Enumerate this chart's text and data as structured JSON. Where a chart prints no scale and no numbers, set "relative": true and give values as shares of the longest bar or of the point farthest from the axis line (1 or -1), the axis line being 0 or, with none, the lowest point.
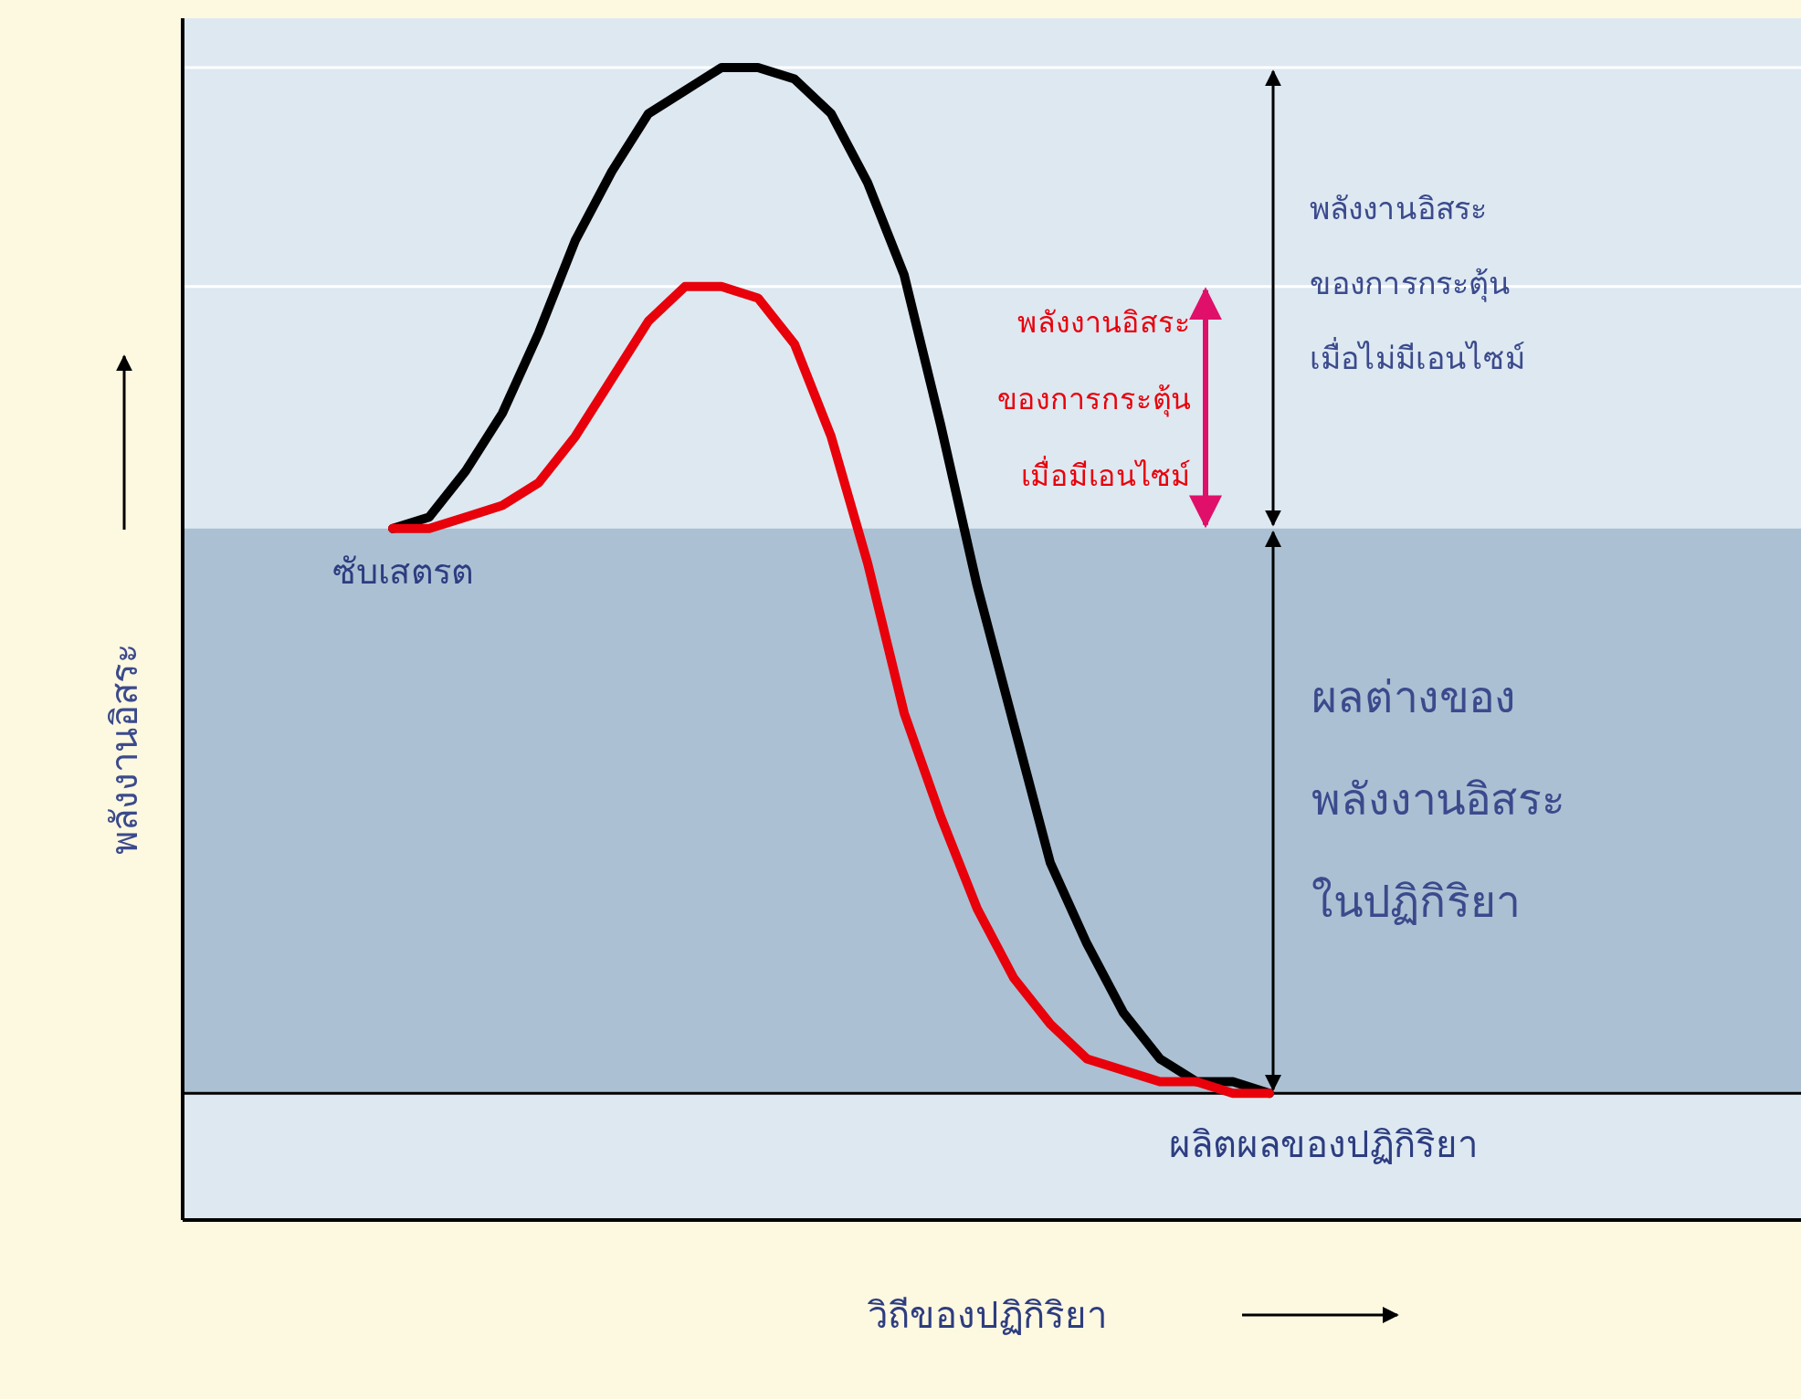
{
  "chart_data": {
    "type": "line",
    "relative": true,
    "xlabel": "วิถีของปฏิกิริยา",
    "grid": false,
    "legend": false,
    "marker": "none",
    "line_style": "solid",
    "categories": [
      null,
      null,
      null,
      null,
      null,
      null,
      null,
      null,
      null,
      null,
      null,
      null,
      null,
      null,
      null,
      null,
      null,
      null,
      null,
      null,
      null,
      null,
      null,
      null,
      null
    ],
    "series": [
      {
        "color": "#000000",
        "values": [
          0.6,
          0.61,
          0.65,
          0.7,
          0.77,
          0.85,
          0.91,
          0.96,
          0.98,
          1.0,
          1.0,
          0.99,
          0.96,
          0.9,
          0.82,
          0.69,
          0.55,
          0.43,
          0.31,
          0.24,
          0.18,
          0.14,
          0.12,
          0.12,
          0.11
        ]
      },
      {
        "color": "#e8000b",
        "values": [
          0.6,
          0.6,
          0.61,
          0.62,
          0.64,
          0.68,
          0.73,
          0.78,
          0.81,
          0.81,
          0.8,
          0.76,
          0.68,
          0.57,
          0.44,
          0.35,
          0.27,
          0.21,
          0.17,
          0.14,
          0.13,
          0.12,
          0.12,
          0.11,
          0.11
        ]
      }
    ],
    "bands": [
      {
        "axis": "y",
        "from": 0.11,
        "to": 0.6,
        "color": "#abc0d3"
      }
    ],
    "ref_lines": [
      {
        "axis": "y",
        "value": 1.0,
        "color": "#ffffff"
      },
      {
        "axis": "y",
        "value": 0.81,
        "color": "#ffffff"
      },
      {
        "axis": "y",
        "value": 0.11,
        "color": "#000000"
      }
    ],
    "annotations": [
      {
        "text": "พลังงานอิสระ\nของการกระตุ้น\nเมื่อไม่มีเอนไซม์"
      },
      {
        "text": "พลังงานอิสระ\nของการกระตุ้น\nเมื่อมีเอนไซม์"
      },
      {
        "text": "ผลต่างของ\nพลังงานอิสระ\nในปฏิกิริยา"
      },
      {
        "text": "ซับเสตรต",
        "y": 0.6
      },
      {
        "text": "ผลิตผลของปฏิกิริยา",
        "y": 0.11
      },
      {
        "text": "พลังงานอิสระ"
      }
    ]
  }
}
